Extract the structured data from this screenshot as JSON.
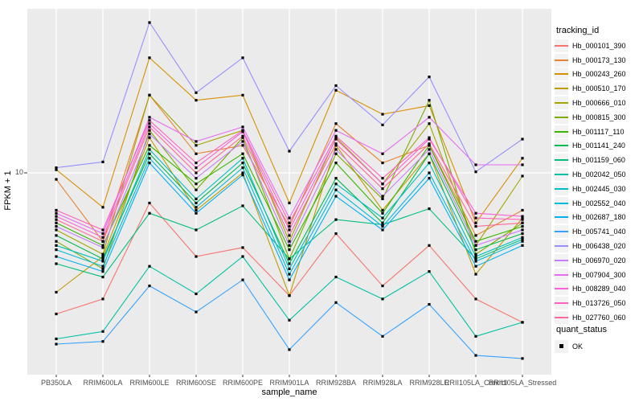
{
  "style": {
    "panel_background": "#ebebeb",
    "gridline_color": "#ffffff",
    "tick_color": "#333333",
    "tick_label_color": "#4d4d4d",
    "marker_color": "#000000",
    "legend_key_background": "#f2f2f2"
  },
  "chart_data": {
    "type": "line",
    "title": "",
    "xlabel": "sample_name",
    "ylabel": "FPKM + 1",
    "y_scale": "log10",
    "grid": "major",
    "legend_position": "right",
    "y_ticks": [
      {
        "value": 10,
        "label": "10"
      }
    ],
    "categories": [
      "PB350LA",
      "RRIM600LA",
      "RRIM600LE",
      "RRIM600SE",
      "RRIM600PE",
      "RRIM901LA",
      "RRIM928BA",
      "RRIM928LA",
      "RRIM928LE",
      "RRII105LA_Control",
      "RRII105LA_Stressed"
    ],
    "marker": "black-square",
    "series": [
      {
        "name": "Hb_000101_390",
        "color": "#F8766D",
        "values": [
          2.6,
          3.0,
          7.5,
          4.5,
          4.9,
          3.1,
          5.6,
          3.4,
          5.0,
          3.0,
          2.4
        ]
      },
      {
        "name": "Hb_000173_130",
        "color": "#EA8331",
        "values": [
          9.4,
          5.2,
          21,
          12,
          13,
          6.0,
          16,
          11,
          13,
          5.5,
          7.0
        ]
      },
      {
        "name": "Hb_000243_260",
        "color": "#D89000",
        "values": [
          10.3,
          7.2,
          30,
          20,
          21,
          7.5,
          22,
          17.5,
          19,
          6.2,
          11.5
        ]
      },
      {
        "name": "Hb_000510_170",
        "color": "#C09B00",
        "values": [
          3.2,
          4.5,
          14,
          7.0,
          10,
          3.1,
          13,
          7.0,
          12,
          3.8,
          6.5
        ]
      },
      {
        "name": "Hb_000666_010",
        "color": "#A3A500",
        "values": [
          5.8,
          4.6,
          21,
          13,
          15,
          5.2,
          14,
          9.0,
          16,
          5.0,
          9.7
        ]
      },
      {
        "name": "Hb_000815_300",
        "color": "#7CAE00",
        "values": [
          5.2,
          4.0,
          15,
          8.5,
          14,
          4.4,
          12,
          7.8,
          20,
          4.6,
          6.2
        ]
      },
      {
        "name": "Hb_001117_110",
        "color": "#39B600",
        "values": [
          6.2,
          5.0,
          13,
          9.0,
          12,
          4.8,
          11,
          6.8,
          13,
          5.2,
          6.0
        ]
      },
      {
        "name": "Hb_001141_240",
        "color": "#00BB4E",
        "values": [
          5.5,
          4.4,
          12,
          7.5,
          11,
          4.2,
          9.5,
          6.2,
          12,
          4.8,
          5.6
        ]
      },
      {
        "name": "Hb_001159_060",
        "color": "#00BF7D",
        "values": [
          4.2,
          3.7,
          6.8,
          5.8,
          7.3,
          4.4,
          6.4,
          6.1,
          7.1,
          4.4,
          5.3
        ]
      },
      {
        "name": "Hb_002042_050",
        "color": "#00C1A3",
        "values": [
          2.05,
          2.2,
          4.1,
          3.15,
          4.5,
          2.45,
          3.7,
          3.0,
          3.9,
          2.1,
          2.4
        ]
      },
      {
        "name": "Hb_002445_030",
        "color": "#00BFC4",
        "values": [
          5.0,
          4.3,
          12.5,
          7.8,
          11.5,
          4.0,
          9.0,
          6.5,
          11,
          4.5,
          5.4
        ]
      },
      {
        "name": "Hb_002552_040",
        "color": "#00BBDA",
        "values": [
          4.8,
          4.1,
          11.5,
          7.2,
          10.5,
          3.8,
          8.5,
          6.0,
          10,
          4.3,
          5.2
        ]
      },
      {
        "name": "Hb_002687_180",
        "color": "#00B0F6",
        "values": [
          4.5,
          3.9,
          11,
          6.8,
          9.8,
          3.6,
          8.0,
          5.8,
          9.5,
          4.1,
          5.0
        ]
      },
      {
        "name": "Hb_005741_040",
        "color": "#35A2FF",
        "values": [
          1.95,
          2.0,
          3.4,
          2.65,
          3.6,
          1.85,
          2.9,
          2.1,
          2.85,
          1.75,
          1.7
        ]
      },
      {
        "name": "Hb_006438_020",
        "color": "#9590FF",
        "values": [
          10.5,
          11.1,
          42,
          21.5,
          30,
          12.3,
          23,
          15.8,
          25,
          10.1,
          13.8
        ]
      },
      {
        "name": "Hb_006970_020",
        "color": "#C77CFF",
        "values": [
          6.0,
          4.9,
          14.5,
          9.5,
          13.5,
          5.0,
          12.5,
          8.0,
          12.5,
          5.0,
          5.8
        ]
      },
      {
        "name": "Hb_007904_300",
        "color": "#E76BF3",
        "values": [
          6.8,
          5.6,
          17,
          13.5,
          15.5,
          6.5,
          15,
          12,
          17,
          10.8,
          10.8
        ]
      },
      {
        "name": "Hb_008289_040",
        "color": "#FA62DB",
        "values": [
          6.6,
          5.4,
          16,
          10.5,
          14.8,
          5.8,
          13.8,
          9.0,
          13.8,
          6.8,
          6.6
        ]
      },
      {
        "name": "Hb_013726_050",
        "color": "#FF62BC",
        "values": [
          7.0,
          5.8,
          16.5,
          11,
          15,
          6.2,
          14.2,
          9.5,
          14,
          6.5,
          6.4
        ]
      },
      {
        "name": "Hb_027760_060",
        "color": "#FF6A98",
        "values": [
          6.4,
          5.2,
          15.5,
          10,
          14.2,
          5.5,
          13.2,
          8.6,
          13.2,
          6.0,
          6.2
        ]
      }
    ],
    "legend": {
      "color_title": "tracking_id",
      "shape_title": "quant_status",
      "shape_entries": [
        {
          "label": "OK"
        }
      ]
    }
  }
}
